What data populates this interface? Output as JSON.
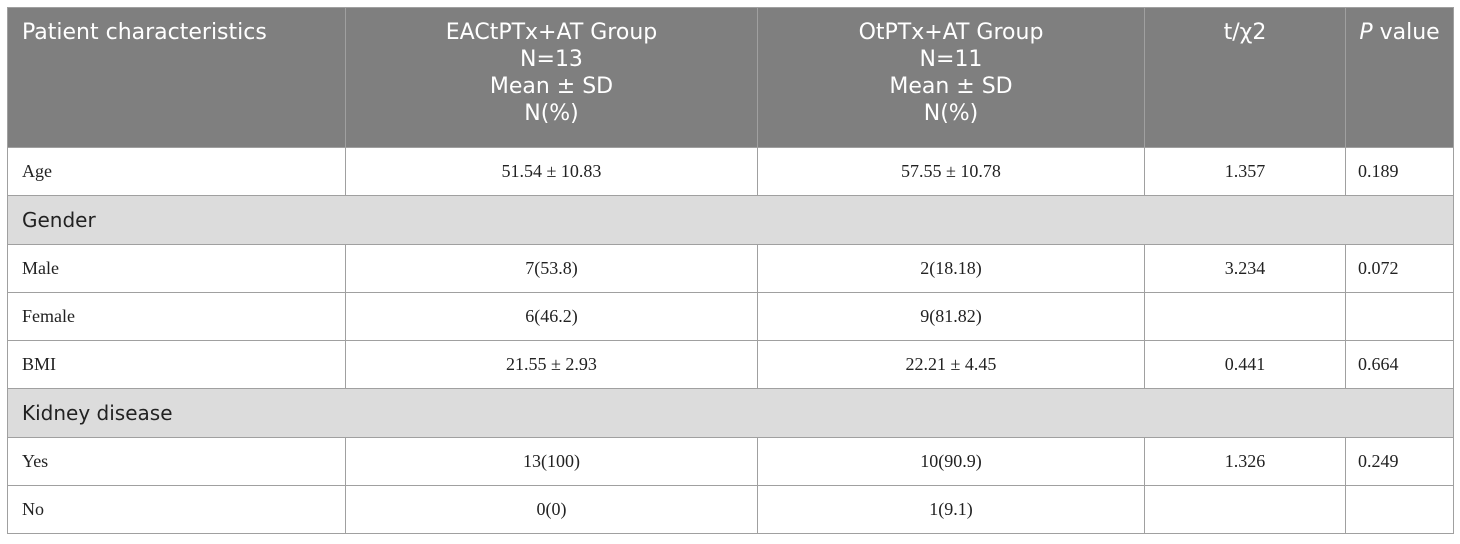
{
  "header": {
    "col1": "Patient characteristics",
    "col2": [
      "EACtPTx+AT Group",
      "N=13",
      "Mean ± SD",
      "N(%)"
    ],
    "col3": [
      "OtPTx+AT Group",
      "N=11",
      "Mean ± SD",
      "N(%)"
    ],
    "col4": "t/χ2",
    "col5_italic": "P",
    "col5_rest": " value"
  },
  "rows": {
    "age": [
      "Age",
      "51.54 ± 10.83",
      "57.55 ± 10.78",
      "1.357",
      "0.189"
    ],
    "gender": "Gender",
    "male": [
      "Male",
      "7(53.8)",
      "2(18.18)",
      "3.234",
      "0.072"
    ],
    "female": [
      "Female",
      "6(46.2)",
      "9(81.82)",
      "",
      ""
    ],
    "bmi": [
      "BMI",
      "21.55 ± 2.93",
      "22.21 ± 4.45",
      "0.441",
      "0.664"
    ],
    "kidney": "Kidney disease",
    "yes": [
      "Yes",
      "13(100)",
      "10(90.9)",
      "1.326",
      "0.249"
    ],
    "no": [
      "No",
      "0(0)",
      "1(9.1)",
      "",
      ""
    ]
  }
}
